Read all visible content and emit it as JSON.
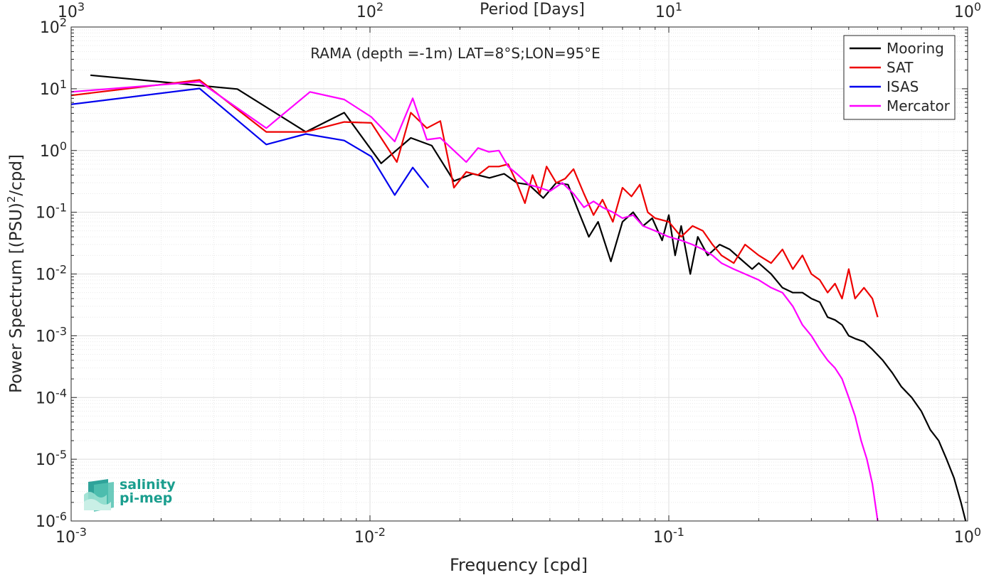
{
  "chart_data": {
    "type": "line",
    "title": "RAMA (depth =-1m) LAT=8°S;LON=95°E",
    "xlabel": "Frequency [cpd]",
    "ylabel": "Power Spectrum [(PSU)²/cpd]",
    "top_xlabel": "Period [Days]",
    "xscale": "log",
    "yscale": "log",
    "xlim": [
      0.001,
      1
    ],
    "ylim": [
      1e-06,
      100
    ],
    "grid": true,
    "legend_position": "top-right",
    "x_ticks": [
      {
        "base": "10",
        "exp": "-3"
      },
      {
        "base": "10",
        "exp": "-2"
      },
      {
        "base": "10",
        "exp": "-1"
      },
      {
        "base": "10",
        "exp": "0"
      }
    ],
    "top_ticks": [
      {
        "base": "10",
        "exp": "3"
      },
      {
        "base": "10",
        "exp": "2"
      },
      {
        "base": "10",
        "exp": "1"
      },
      {
        "base": "10",
        "exp": "0"
      }
    ],
    "y_ticks": [
      {
        "base": "10",
        "exp": "-6"
      },
      {
        "base": "10",
        "exp": "-5"
      },
      {
        "base": "10",
        "exp": "-4"
      },
      {
        "base": "10",
        "exp": "-3"
      },
      {
        "base": "10",
        "exp": "-2"
      },
      {
        "base": "10",
        "exp": "-1"
      },
      {
        "base": "10",
        "exp": "0"
      },
      {
        "base": "10",
        "exp": "1"
      },
      {
        "base": "10",
        "exp": "2"
      }
    ],
    "series": [
      {
        "name": "Mooring",
        "color": "#000000",
        "x": [
          0.00116,
          0.00269,
          0.0036,
          0.0061,
          0.0082,
          0.0109,
          0.0137,
          0.0161,
          0.0191,
          0.0221,
          0.0251,
          0.0281,
          0.031,
          0.034,
          0.038,
          0.042,
          0.046,
          0.05,
          0.054,
          0.058,
          0.064,
          0.07,
          0.076,
          0.082,
          0.088,
          0.095,
          0.1,
          0.105,
          0.11,
          0.118,
          0.125,
          0.135,
          0.148,
          0.16,
          0.175,
          0.19,
          0.2,
          0.22,
          0.24,
          0.26,
          0.28,
          0.3,
          0.32,
          0.34,
          0.36,
          0.38,
          0.4,
          0.42,
          0.45,
          0.48,
          0.52,
          0.56,
          0.6,
          0.65,
          0.7,
          0.75,
          0.8,
          0.85,
          0.9,
          0.95,
          0.985
        ],
        "y": [
          16.6,
          11.3,
          9.9,
          2.0,
          4.1,
          0.62,
          1.6,
          1.2,
          0.32,
          0.42,
          0.36,
          0.42,
          0.3,
          0.28,
          0.17,
          0.3,
          0.28,
          0.1,
          0.04,
          0.07,
          0.016,
          0.07,
          0.1,
          0.06,
          0.08,
          0.035,
          0.09,
          0.02,
          0.06,
          0.01,
          0.04,
          0.02,
          0.03,
          0.025,
          0.017,
          0.012,
          0.015,
          0.01,
          0.006,
          0.005,
          0.005,
          0.004,
          0.0035,
          0.002,
          0.0018,
          0.0015,
          0.001,
          0.0009,
          0.0008,
          0.0006,
          0.0004,
          0.00025,
          0.00015,
          0.0001,
          6e-05,
          3e-05,
          2e-05,
          1e-05,
          5e-06,
          2e-06,
          1e-06
        ]
      },
      {
        "name": "SAT",
        "color": "#ee0000",
        "x": [
          0.001,
          0.00269,
          0.0045,
          0.0061,
          0.0082,
          0.0101,
          0.0123,
          0.0137,
          0.0155,
          0.0172,
          0.0191,
          0.021,
          0.023,
          0.025,
          0.027,
          0.029,
          0.031,
          0.033,
          0.035,
          0.037,
          0.039,
          0.042,
          0.045,
          0.048,
          0.052,
          0.056,
          0.06,
          0.065,
          0.07,
          0.075,
          0.08,
          0.085,
          0.09,
          0.1,
          0.11,
          0.12,
          0.13,
          0.14,
          0.15,
          0.165,
          0.18,
          0.2,
          0.22,
          0.24,
          0.26,
          0.28,
          0.3,
          0.32,
          0.34,
          0.36,
          0.38,
          0.4,
          0.42,
          0.45,
          0.48,
          0.5
        ],
        "y": [
          7.8,
          13.9,
          2.0,
          2.0,
          2.9,
          2.8,
          0.65,
          4.1,
          2.3,
          3.0,
          0.25,
          0.45,
          0.4,
          0.55,
          0.55,
          0.6,
          0.3,
          0.14,
          0.4,
          0.2,
          0.55,
          0.3,
          0.35,
          0.5,
          0.2,
          0.09,
          0.16,
          0.07,
          0.25,
          0.18,
          0.28,
          0.1,
          0.08,
          0.07,
          0.04,
          0.06,
          0.05,
          0.03,
          0.02,
          0.015,
          0.03,
          0.02,
          0.015,
          0.025,
          0.012,
          0.02,
          0.01,
          0.008,
          0.005,
          0.007,
          0.004,
          0.012,
          0.004,
          0.006,
          0.004,
          0.002
        ]
      },
      {
        "name": "ISAS",
        "color": "#0000ee",
        "x": [
          0.001,
          0.00269,
          0.0045,
          0.0061,
          0.0082,
          0.0101,
          0.0121,
          0.0139,
          0.0157
        ],
        "y": [
          5.6,
          10.1,
          1.25,
          1.85,
          1.45,
          0.8,
          0.19,
          0.53,
          0.25
        ]
      },
      {
        "name": "Mercator",
        "color": "#ff00ff",
        "x": [
          0.001,
          0.00269,
          0.0045,
          0.0063,
          0.0082,
          0.0101,
          0.0121,
          0.0139,
          0.0155,
          0.0172,
          0.0191,
          0.021,
          0.023,
          0.025,
          0.027,
          0.029,
          0.031,
          0.034,
          0.037,
          0.04,
          0.044,
          0.048,
          0.052,
          0.056,
          0.06,
          0.065,
          0.07,
          0.076,
          0.082,
          0.09,
          0.1,
          0.11,
          0.12,
          0.13,
          0.14,
          0.15,
          0.165,
          0.18,
          0.2,
          0.22,
          0.24,
          0.26,
          0.28,
          0.3,
          0.32,
          0.34,
          0.36,
          0.38,
          0.4,
          0.42,
          0.44,
          0.46,
          0.48,
          0.5
        ],
        "y": [
          8.9,
          13.0,
          2.3,
          8.9,
          6.7,
          3.5,
          1.4,
          7.0,
          1.5,
          1.6,
          1.0,
          0.65,
          1.1,
          0.95,
          1.0,
          0.55,
          0.42,
          0.28,
          0.25,
          0.22,
          0.3,
          0.2,
          0.12,
          0.15,
          0.12,
          0.1,
          0.08,
          0.09,
          0.06,
          0.05,
          0.04,
          0.035,
          0.03,
          0.025,
          0.02,
          0.015,
          0.012,
          0.01,
          0.008,
          0.006,
          0.005,
          0.003,
          0.0015,
          0.001,
          0.0006,
          0.0004,
          0.0003,
          0.0002,
          0.0001,
          5e-05,
          2e-05,
          1e-05,
          4e-06,
          1e-06
        ]
      }
    ]
  },
  "logo": {
    "line1": "salinity",
    "line2": "pi-mep"
  }
}
